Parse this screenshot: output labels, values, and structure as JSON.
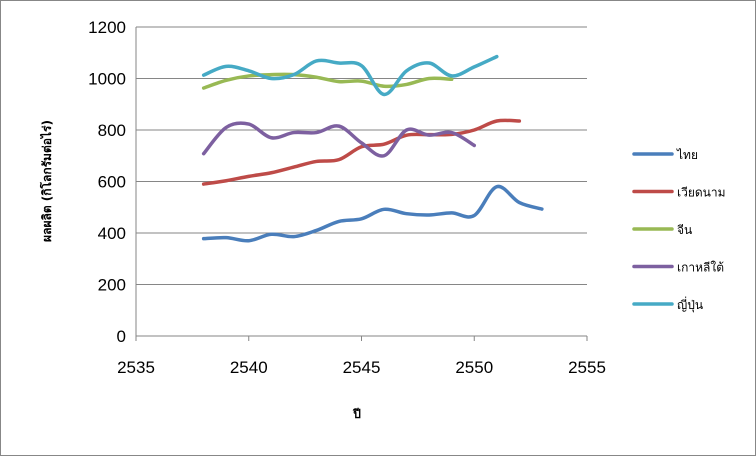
{
  "chart_data": {
    "type": "line",
    "xlabel": "ปี",
    "ylabel": "ผลผลิต (กิโลกรัมต่อไร่)",
    "xlim": [
      2535,
      2555
    ],
    "ylim": [
      0,
      1200
    ],
    "x_ticks": [
      "2535",
      "2540",
      "2545",
      "2550",
      "2555"
    ],
    "y_ticks": [
      "0",
      "200",
      "400",
      "600",
      "800",
      "1000",
      "1200"
    ],
    "grid": "horizontal",
    "legend_position": "right",
    "smooth": true,
    "series": [
      {
        "name": "ไทย",
        "color": "#4a7ebb",
        "x": [
          2538,
          2539,
          2540,
          2541,
          2542,
          2543,
          2544,
          2545,
          2546,
          2547,
          2548,
          2549,
          2550,
          2551,
          2552,
          2553
        ],
        "y": [
          378,
          382,
          370,
          395,
          386,
          410,
          445,
          455,
          492,
          475,
          470,
          478,
          468,
          580,
          518,
          493
        ]
      },
      {
        "name": "เวียดนาม",
        "color": "#be4b48",
        "x": [
          2538,
          2539,
          2540,
          2541,
          2542,
          2543,
          2544,
          2545,
          2546,
          2547,
          2548,
          2549,
          2550,
          2551,
          2552
        ],
        "y": [
          590,
          603,
          620,
          634,
          656,
          678,
          685,
          735,
          745,
          780,
          782,
          783,
          800,
          835,
          835
        ]
      },
      {
        "name": "จีน",
        "color": "#98b954",
        "x": [
          2538,
          2539,
          2540,
          2541,
          2542,
          2543,
          2544,
          2545,
          2546,
          2547,
          2548,
          2549
        ],
        "y": [
          963,
          993,
          1010,
          1015,
          1015,
          1005,
          988,
          990,
          970,
          977,
          1000,
          997
        ]
      },
      {
        "name": "เกาหลีใต้",
        "color": "#7d60a0",
        "x": [
          2538,
          2539,
          2540,
          2541,
          2542,
          2543,
          2544,
          2545,
          2546,
          2547,
          2548,
          2549,
          2550
        ],
        "y": [
          708,
          810,
          823,
          770,
          790,
          790,
          815,
          750,
          700,
          800,
          780,
          790,
          740
        ]
      },
      {
        "name": "ญี่ปุ่น",
        "color": "#46aac5",
        "x": [
          2538,
          2539,
          2540,
          2541,
          2542,
          2543,
          2544,
          2545,
          2546,
          2547,
          2548,
          2549,
          2550,
          2551
        ],
        "y": [
          1013,
          1047,
          1030,
          1000,
          1015,
          1068,
          1060,
          1050,
          938,
          1030,
          1060,
          1010,
          1045,
          1085
        ]
      }
    ]
  }
}
